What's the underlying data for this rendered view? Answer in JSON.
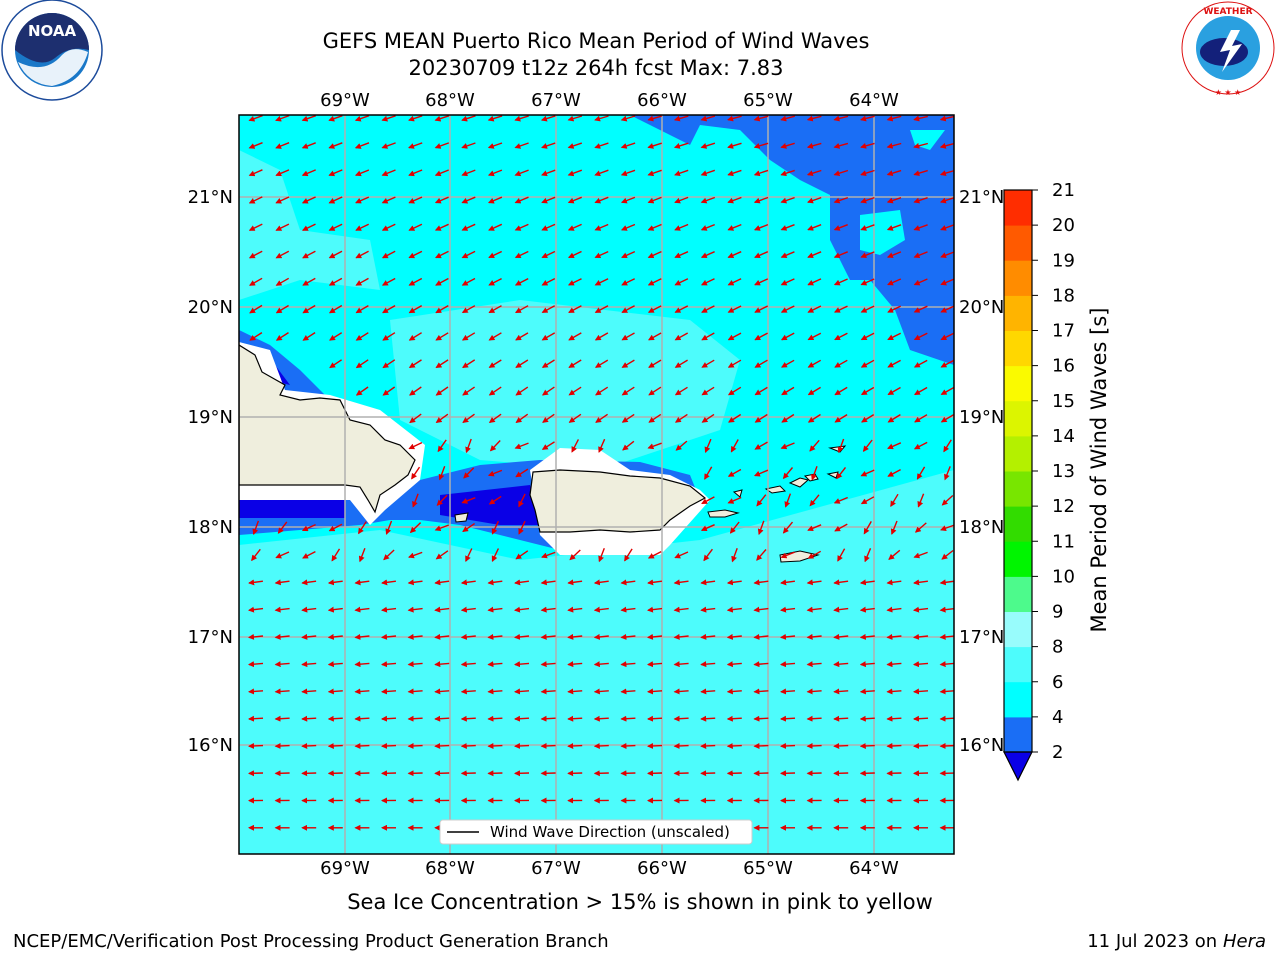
{
  "title": {
    "line1": "GEFS MEAN Puerto Rico Mean Period of Wind Waves",
    "line2": "20230709 t12z 264h fcst   Max: 7.83"
  },
  "axes": {
    "lon_labels": [
      "69°W",
      "68°W",
      "67°W",
      "66°W",
      "65°W",
      "64°W"
    ],
    "lat_labels": [
      "21°N",
      "20°N",
      "19°N",
      "18°N",
      "17°N",
      "16°N"
    ]
  },
  "legend": {
    "label": "Wind Wave Direction (unscaled)"
  },
  "colorbar": {
    "label": "Mean Period of Wind Waves [s]",
    "ticks": [
      "2",
      "4",
      "6",
      "8",
      "9",
      "10",
      "11",
      "12",
      "13",
      "14",
      "15",
      "16",
      "17",
      "18",
      "19",
      "20",
      "21"
    ],
    "colors": [
      "#1a6ef5",
      "#00ffff",
      "#4dfcfc",
      "#98fcfc",
      "#4dfa8c",
      "#00f500",
      "#32dc00",
      "#78e600",
      "#b4f000",
      "#dcf500",
      "#fafa00",
      "#ffd700",
      "#ffb400",
      "#ff8c00",
      "#ff5a00",
      "#ff2d00",
      "#ff0000"
    ],
    "under_color": "#0a00e6"
  },
  "caption": "Sea Ice Concentration > 15% is shown in pink to yellow",
  "footer": {
    "left": "NCEP/EMC/Verification Post Processing Product Generation Branch",
    "date": "11 Jul 2023 on ",
    "host": "Hera"
  },
  "logos": {
    "noaa": "NOAA",
    "nws": "NATIONAL WEATHER SERVICE"
  }
}
